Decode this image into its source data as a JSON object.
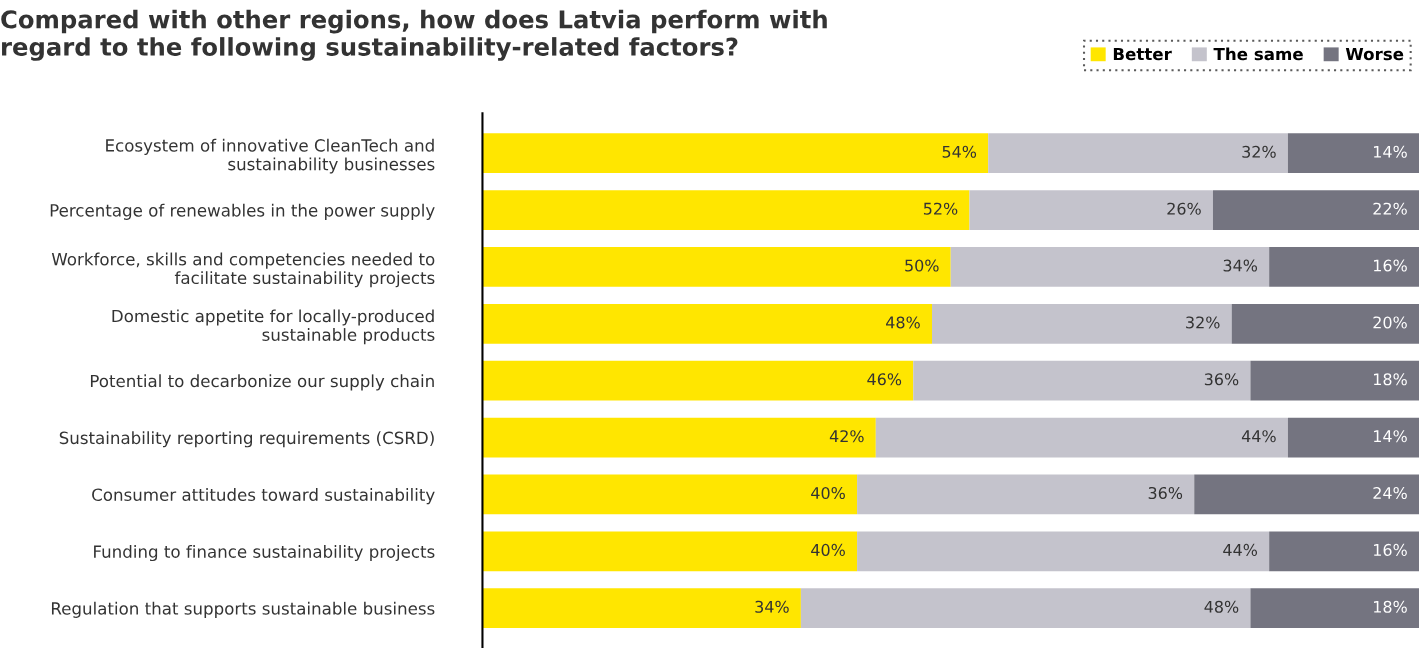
{
  "chart_data": {
    "type": "bar",
    "orientation": "horizontal",
    "stacked": true,
    "title": "Compared with other regions, how does Latvia perform with\nregard to the following sustainability-related factors?",
    "categories": [
      "Ecosystem of innovative CleanTech and\nsustainability businesses",
      "Percentage of renewables in the power supply",
      "Workforce, skills and competencies needed to\nfacilitate sustainability projects",
      "Domestic appetite for locally-produced\nsustainable products",
      "Potential to decarbonize our supply chain",
      "Sustainability reporting requirements (CSRD)",
      "Consumer attitudes toward sustainability",
      "Funding to finance sustainability projects",
      "Regulation that supports sustainable business"
    ],
    "series": [
      {
        "name": "Better",
        "color": "#ffe600",
        "values": [
          54,
          52,
          50,
          48,
          46,
          42,
          40,
          40,
          34
        ],
        "value_labels": [
          "54%",
          "52%",
          "50%",
          "48%",
          "46%",
          "42%",
          "40%",
          "40%",
          "34%"
        ]
      },
      {
        "name": "The same",
        "color": "#c4c3cc",
        "values": [
          32,
          26,
          34,
          32,
          36,
          44,
          36,
          44,
          48
        ],
        "value_labels": [
          "32%",
          "26%",
          "34%",
          "32%",
          "36%",
          "44%",
          "36%",
          "44%",
          "48%"
        ]
      },
      {
        "name": "Worse",
        "color": "#747480",
        "values": [
          14,
          22,
          16,
          20,
          18,
          14,
          24,
          16,
          18
        ],
        "value_labels": [
          "14%",
          "22%",
          "16%",
          "20%",
          "18%",
          "14%",
          "24%",
          "16%",
          "18%"
        ]
      }
    ],
    "legend": "top right",
    "tick_labels": "y",
    "grid": false
  }
}
